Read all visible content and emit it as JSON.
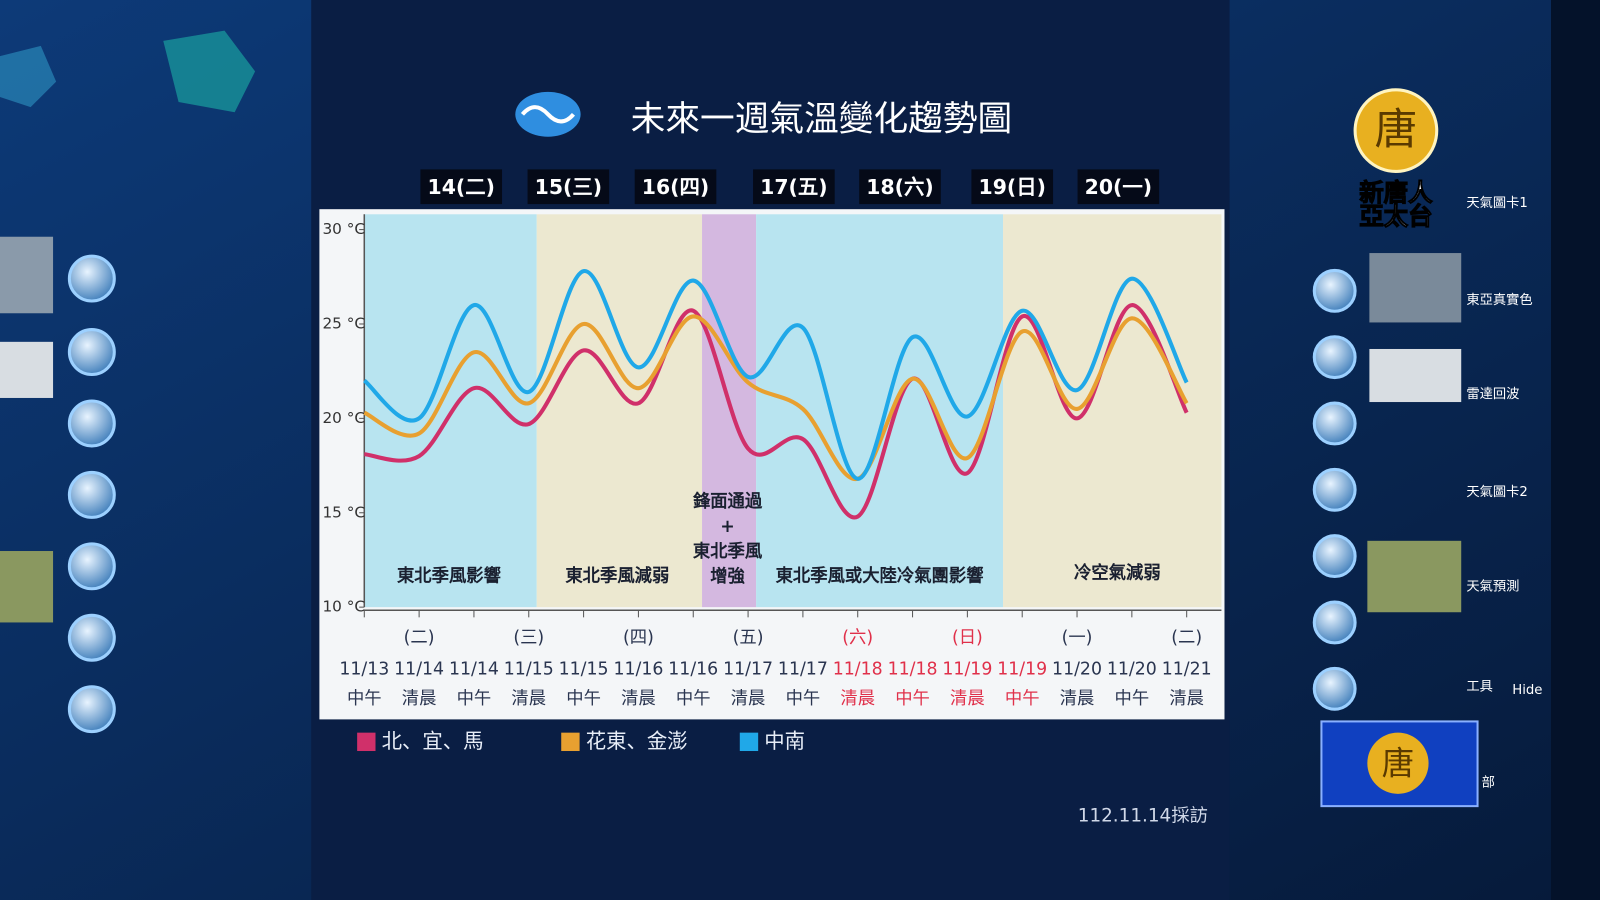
{
  "logo": {
    "char": "唐",
    "line1": "新唐人",
    "line2": "亞太台"
  },
  "sidebar_labels": [
    "天氣圖卡1",
    "東亞真實色",
    "雷達回波",
    "天氣圖卡2",
    "天氣預測",
    "工具",
    "Hide",
    "部"
  ],
  "footer": "112.11.14採訪",
  "chart_data": {
    "type": "line",
    "title": "未來一週氣溫變化趨勢圖",
    "day_headers": [
      "14(二)",
      "15(三)",
      "16(四)",
      "17(五)",
      "18(六)",
      "19(日)",
      "20(一)"
    ],
    "categories": [
      "11/13",
      "11/14",
      "11/14",
      "11/15",
      "11/15",
      "11/16",
      "11/16",
      "11/17",
      "11/17",
      "11/18",
      "11/18",
      "11/19",
      "11/19",
      "11/20",
      "11/20",
      "11/21"
    ],
    "category_times": [
      "中午",
      "清晨",
      "中午",
      "清晨",
      "中午",
      "清晨",
      "中午",
      "清晨",
      "中午",
      "清晨",
      "中午",
      "清晨",
      "中午",
      "清晨",
      "中午",
      "清晨"
    ],
    "category_weekdays": [
      null,
      "(二)",
      null,
      "(三)",
      null,
      "(四)",
      null,
      "(五)",
      null,
      "(六)",
      null,
      "(日)",
      null,
      "(一)",
      null,
      "(二)"
    ],
    "annotations": [
      "東北季風影響",
      "東北季風減弱",
      [
        "鋒面通過",
        "+",
        "東北季風",
        "增強"
      ],
      "東北季風或大陸冷氣團影響",
      "冷空氣減弱"
    ],
    "ylim": [
      10,
      30
    ],
    "yticks": [
      {
        "value": 10,
        "label": "10 °C"
      },
      {
        "value": 15,
        "label": "15 °C"
      },
      {
        "value": 20,
        "label": "20 °C"
      },
      {
        "value": 25,
        "label": "25 °C"
      },
      {
        "value": 30,
        "label": "30 °C"
      }
    ],
    "legend": "bottom",
    "series": [
      {
        "name": "北、宜、馬",
        "color": "#d0306a",
        "values": [
          18.1,
          18,
          21.6,
          19.7,
          23.6,
          20.8,
          25.7,
          18.4,
          18.9,
          14.8,
          22.1,
          17.1,
          25.4,
          20,
          26,
          20.3
        ]
      },
      {
        "name": "花東、金澎",
        "color": "#e8a030",
        "values": [
          20.3,
          19.2,
          23.5,
          20.8,
          25,
          21.6,
          25.4,
          21.9,
          20.5,
          16.8,
          22.1,
          17.9,
          24.6,
          20.5,
          25.3,
          20.8
        ]
      },
      {
        "name": "中南",
        "color": "#20a8e8",
        "values": [
          22,
          20,
          26,
          21.4,
          27.8,
          22.7,
          27.3,
          22.2,
          24.8,
          16.8,
          24.3,
          20.1,
          25.7,
          21.5,
          27.4,
          21.9
        ]
      }
    ]
  }
}
